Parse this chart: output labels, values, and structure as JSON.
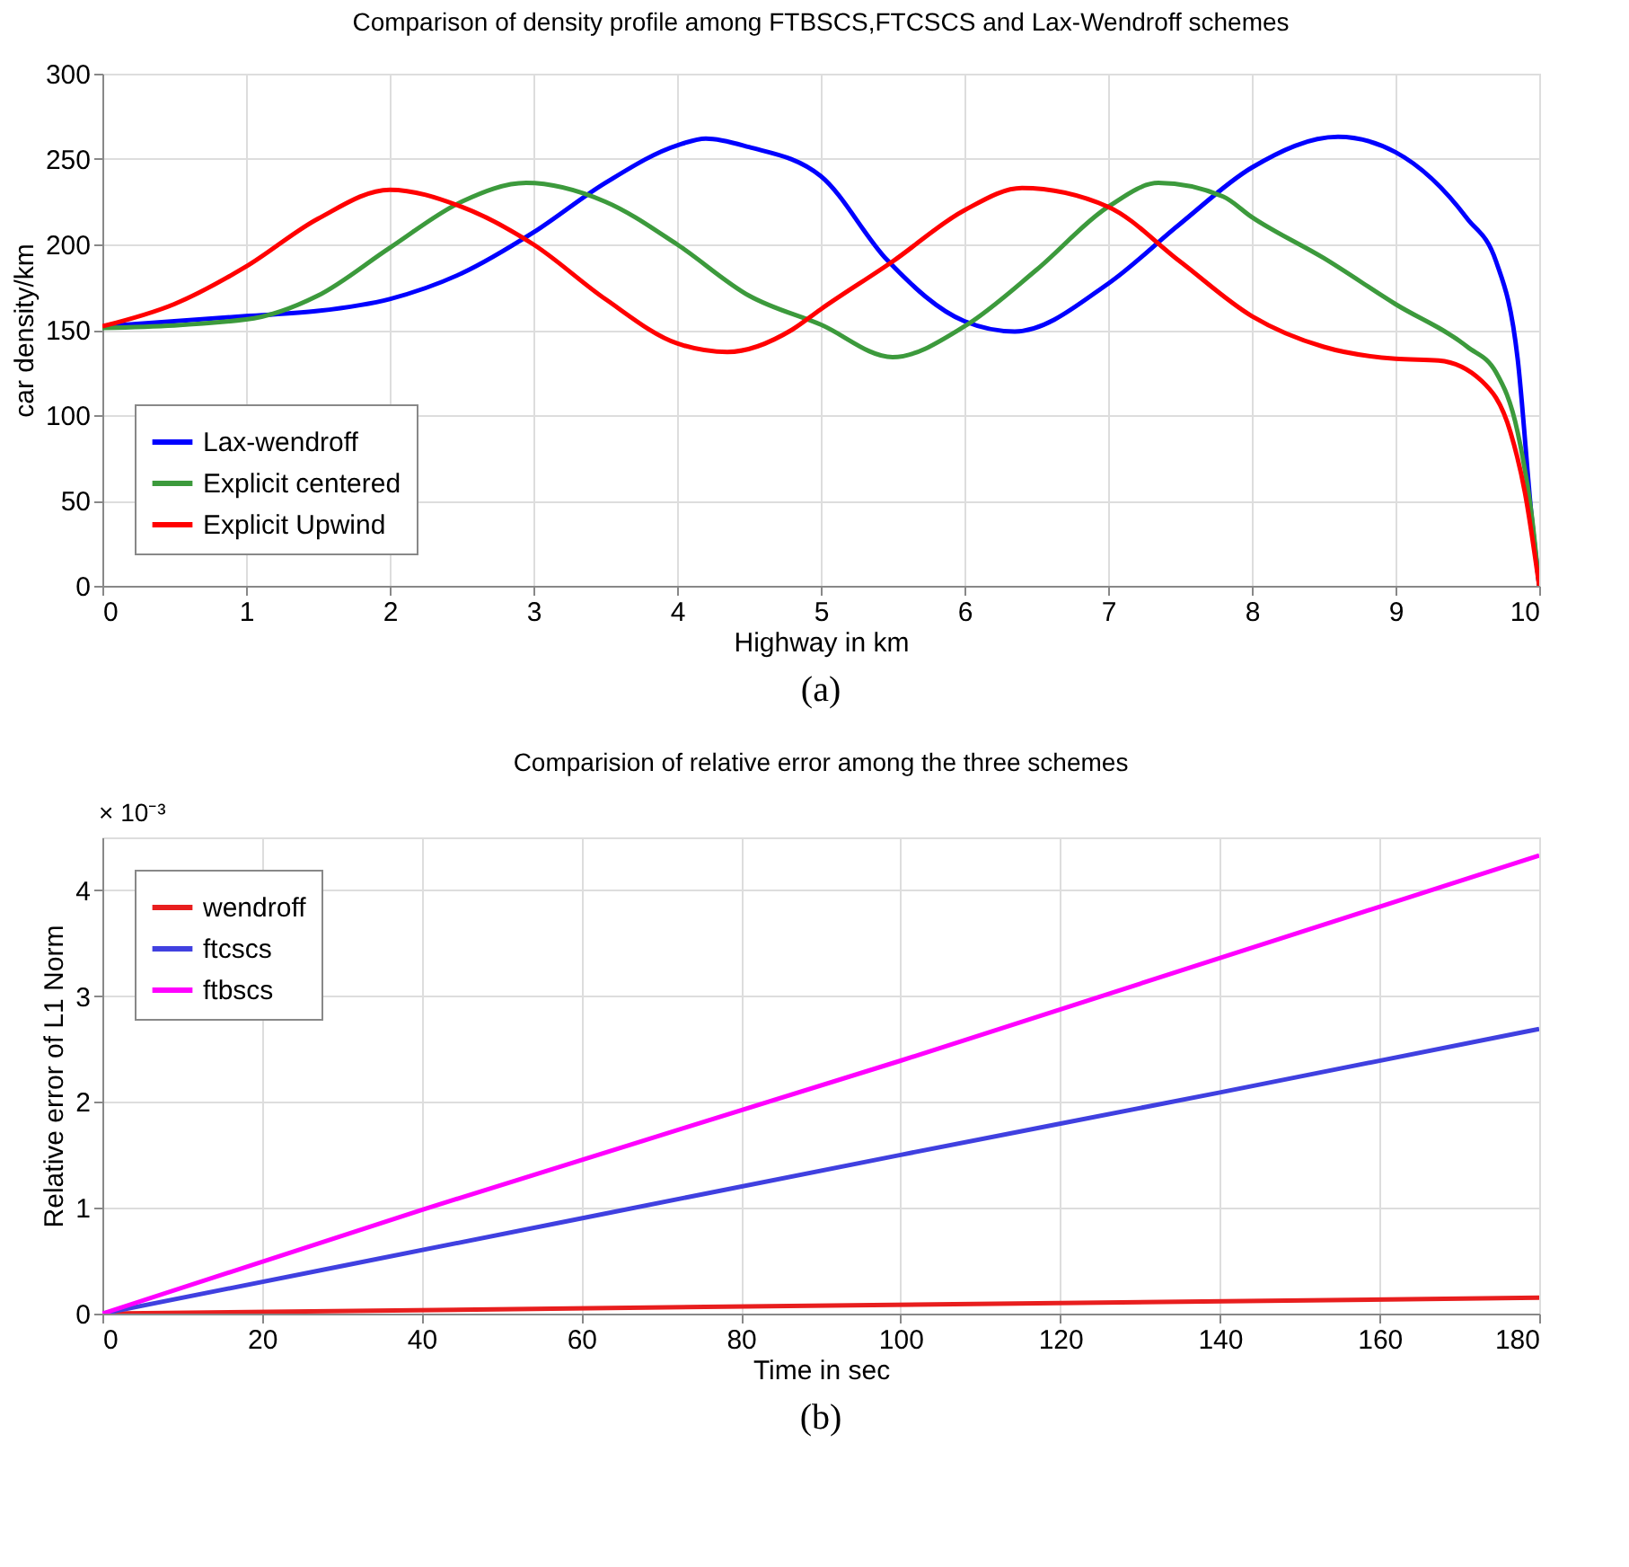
{
  "chart_data": [
    {
      "type": "line",
      "title": "Comparison of density profile among FTBSCS,FTCSCS and Lax-Wendroff schemes",
      "xlabel": "Highway in km",
      "ylabel": "car density/km",
      "xlim": [
        0,
        10
      ],
      "ylim": [
        0,
        300
      ],
      "xticks": [
        0,
        1,
        2,
        3,
        4,
        5,
        6,
        7,
        8,
        9,
        10
      ],
      "yticks": [
        0,
        50,
        100,
        150,
        200,
        250,
        300
      ],
      "grid": true,
      "legend": "bottom left",
      "line_style": "solid",
      "annotations": [
        "(a)"
      ],
      "series": [
        {
          "name": "Lax-wendroff",
          "color": "#0000ff",
          "x": [
            0,
            1,
            1.5,
            2,
            2.5,
            3,
            3.5,
            4,
            4.2,
            4.5,
            5,
            5.46,
            6,
            6.35,
            7,
            7.5,
            8,
            8.6,
            9,
            9.5,
            9.7,
            9.85,
            9.95,
            10
          ],
          "values": [
            152,
            158,
            161,
            168,
            183,
            207,
            236,
            258,
            262,
            257,
            240,
            191,
            155,
            149,
            177,
            212,
            245,
            263,
            254,
            215,
            190,
            133,
            38,
            0
          ]
        },
        {
          "name": "Explicit centered",
          "color": "#3c9a3c",
          "x": [
            0,
            1,
            1.5,
            2,
            2.5,
            2.95,
            3.5,
            4,
            4.5,
            5,
            5.5,
            6,
            6.5,
            7,
            7.35,
            7.8,
            8,
            8.5,
            9,
            9.5,
            9.7,
            9.85,
            9.95,
            10
          ],
          "values": [
            151,
            156,
            170,
            198,
            225,
            236,
            225,
            200,
            170,
            153,
            134,
            152,
            185,
            222,
            236,
            228,
            216,
            192,
            165,
            140,
            125,
            90,
            40,
            0
          ]
        },
        {
          "name": "Explicit Upwind",
          "color": "#ff0000",
          "x": [
            0,
            0.5,
            1,
            1.5,
            2,
            2.5,
            3,
            3.5,
            4,
            4.35,
            4.8,
            5,
            5.5,
            6,
            6.4,
            7,
            7.5,
            8,
            8.5,
            9,
            9.3,
            9.6,
            9.8,
            9.9,
            10
          ],
          "values": [
            152,
            165,
            187,
            215,
            232,
            222,
            200,
            168,
            142,
            137,
            150,
            162,
            190,
            220,
            233,
            222,
            190,
            158,
            140,
            133,
            132,
            120,
            90,
            55,
            0
          ]
        }
      ]
    },
    {
      "type": "line",
      "title": "Comparision of relative error among the three schemes",
      "xlabel": "Time in sec",
      "ylabel": "Relative error of L1 Norm",
      "xlim": [
        0,
        180
      ],
      "ylim": [
        0,
        4.5
      ],
      "xticks": [
        0,
        20,
        40,
        60,
        80,
        100,
        120,
        140,
        160,
        180
      ],
      "yticks": [
        0,
        1,
        2,
        3,
        4
      ],
      "grid": true,
      "legend": "top left",
      "line_style": "solid",
      "annotations": [
        "× 10⁻³",
        "(b)"
      ],
      "series": [
        {
          "name": "wendroff",
          "color": "#e81e1e",
          "x": [
            0,
            180
          ],
          "values": [
            0,
            0.15
          ]
        },
        {
          "name": "ftcscs",
          "color": "#4040e0",
          "x": [
            0,
            60,
            100,
            140,
            180
          ],
          "values": [
            0,
            0.9,
            1.5,
            2.09,
            2.69
          ]
        },
        {
          "name": "ftbscs",
          "color": "#ff00ff",
          "x": [
            0,
            40,
            100,
            180
          ],
          "values": [
            0,
            0.98,
            2.39,
            4.33
          ]
        }
      ]
    }
  ]
}
